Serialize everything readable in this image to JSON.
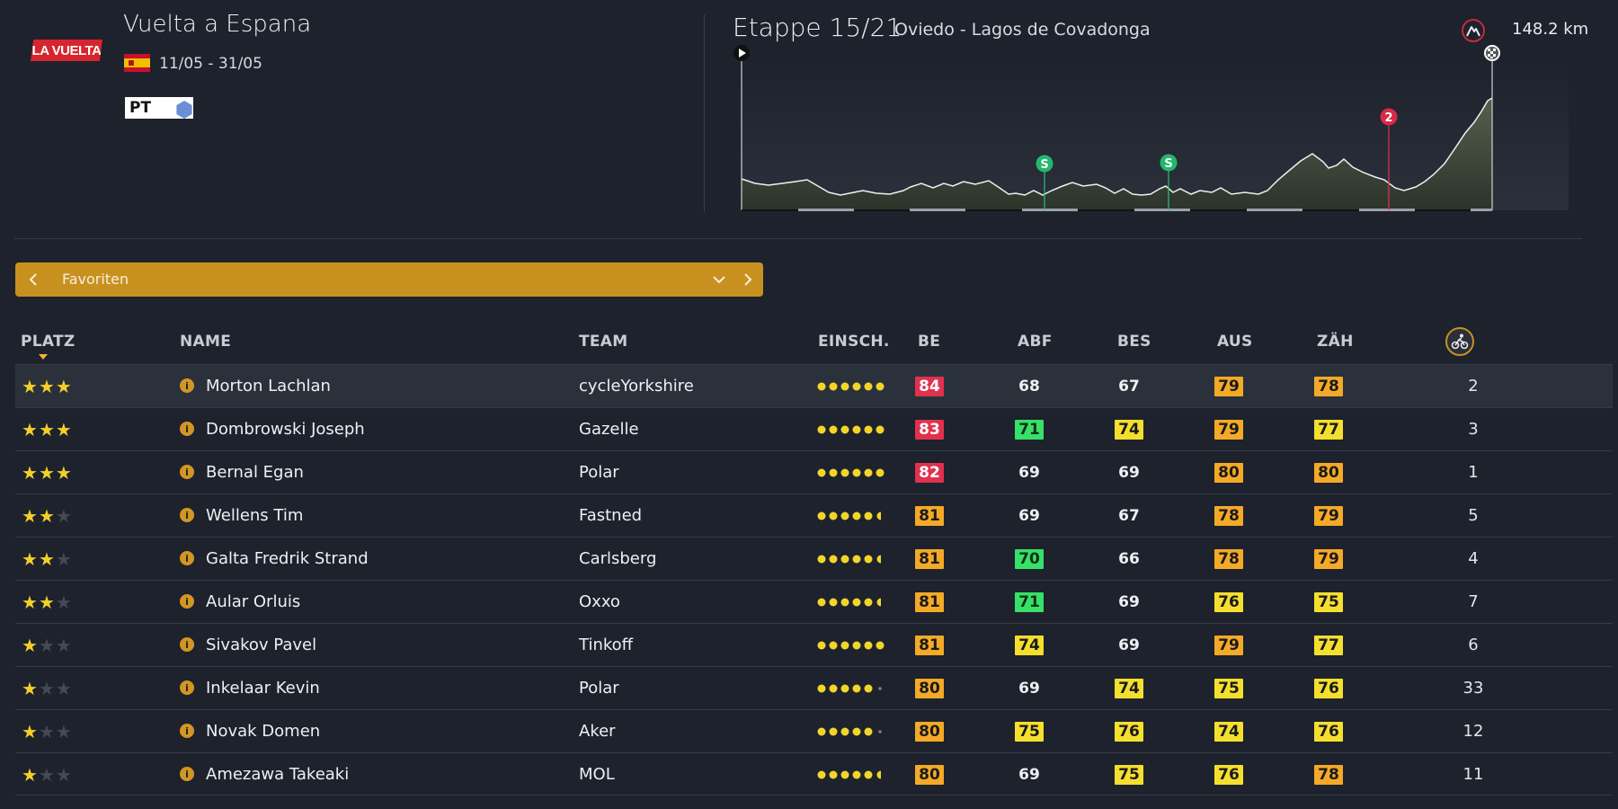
{
  "race": {
    "logo_text": "LA VUELTA",
    "title": "Vuelta a Espana",
    "dates": "11/05 - 31/05",
    "category": "PT",
    "flag": "spain-flag-icon"
  },
  "stage": {
    "label": "Etappe 15/21",
    "route": "Oviedo - Lagos de Covadonga",
    "distance": "148.2 km",
    "type_icon": "mountain-stage-icon",
    "markers": [
      "S",
      "S",
      "2"
    ]
  },
  "filter": {
    "label": "Favoriten",
    "prev_icon": "chevron-left-icon",
    "dropdown_icon": "chevron-down-icon",
    "next_icon": "chevron-right-icon"
  },
  "columns": {
    "platz": "PLATZ",
    "name": "NAME",
    "team": "TEAM",
    "einsch": "EINSCH.",
    "be": "BE",
    "abf": "ABF",
    "bes": "BES",
    "aus": "AUS",
    "zah": "ZÄH",
    "rank_icon": "cyclist-ranking-icon"
  },
  "colors": {
    "background": "#1d222c",
    "accent": "#c8901e",
    "red": "#e0314f",
    "orange": "#f4a927",
    "yellow": "#f5df2e",
    "green": "#37e068",
    "star": "#f3cf2a"
  },
  "riders": [
    {
      "stars": 3,
      "name": "Morton Lachlan",
      "team": "cycleYorkshire",
      "einsch": 6,
      "be": {
        "v": "84",
        "c": "red"
      },
      "abf": {
        "v": "68",
        "c": ""
      },
      "bes": {
        "v": "67",
        "c": ""
      },
      "aus": {
        "v": "79",
        "c": "orange"
      },
      "zah": {
        "v": "78",
        "c": "orange"
      },
      "rank": "2"
    },
    {
      "stars": 3,
      "name": "Dombrowski Joseph",
      "team": "Gazelle",
      "einsch": 6,
      "be": {
        "v": "83",
        "c": "red"
      },
      "abf": {
        "v": "71",
        "c": "green"
      },
      "bes": {
        "v": "74",
        "c": "yellow"
      },
      "aus": {
        "v": "79",
        "c": "orange"
      },
      "zah": {
        "v": "77",
        "c": "yellow"
      },
      "rank": "3"
    },
    {
      "stars": 3,
      "name": "Bernal Egan",
      "team": "Polar",
      "einsch": 6,
      "be": {
        "v": "82",
        "c": "red"
      },
      "abf": {
        "v": "69",
        "c": ""
      },
      "bes": {
        "v": "69",
        "c": ""
      },
      "aus": {
        "v": "80",
        "c": "orange"
      },
      "zah": {
        "v": "80",
        "c": "orange"
      },
      "rank": "1"
    },
    {
      "stars": 2,
      "name": "Wellens Tim",
      "team": "Fastned",
      "einsch": 5.5,
      "be": {
        "v": "81",
        "c": "orange"
      },
      "abf": {
        "v": "69",
        "c": ""
      },
      "bes": {
        "v": "67",
        "c": ""
      },
      "aus": {
        "v": "78",
        "c": "orange"
      },
      "zah": {
        "v": "79",
        "c": "orange"
      },
      "rank": "5"
    },
    {
      "stars": 2,
      "name": "Galta Fredrik Strand",
      "team": "Carlsberg",
      "einsch": 5.5,
      "be": {
        "v": "81",
        "c": "orange"
      },
      "abf": {
        "v": "70",
        "c": "green"
      },
      "bes": {
        "v": "66",
        "c": ""
      },
      "aus": {
        "v": "78",
        "c": "orange"
      },
      "zah": {
        "v": "79",
        "c": "orange"
      },
      "rank": "4"
    },
    {
      "stars": 2,
      "name": "Aular Orluis",
      "team": "Oxxo",
      "einsch": 5.5,
      "be": {
        "v": "81",
        "c": "orange"
      },
      "abf": {
        "v": "71",
        "c": "green"
      },
      "bes": {
        "v": "69",
        "c": ""
      },
      "aus": {
        "v": "76",
        "c": "yellow"
      },
      "zah": {
        "v": "75",
        "c": "yellow"
      },
      "rank": "7"
    },
    {
      "stars": 1,
      "name": "Sivakov Pavel",
      "team": "Tinkoff",
      "einsch": 6,
      "be": {
        "v": "81",
        "c": "orange"
      },
      "abf": {
        "v": "74",
        "c": "yellow"
      },
      "bes": {
        "v": "69",
        "c": ""
      },
      "aus": {
        "v": "79",
        "c": "orange"
      },
      "zah": {
        "v": "77",
        "c": "yellow"
      },
      "rank": "6"
    },
    {
      "stars": 1,
      "name": "Inkelaar Kevin",
      "team": "Polar",
      "einsch": 5,
      "be": {
        "v": "80",
        "c": "orange"
      },
      "abf": {
        "v": "69",
        "c": ""
      },
      "bes": {
        "v": "74",
        "c": "yellow"
      },
      "aus": {
        "v": "75",
        "c": "yellow"
      },
      "zah": {
        "v": "76",
        "c": "yellow"
      },
      "rank": "33"
    },
    {
      "stars": 1,
      "name": "Novak Domen",
      "team": "Aker",
      "einsch": 5,
      "be": {
        "v": "80",
        "c": "orange"
      },
      "abf": {
        "v": "75",
        "c": "yellow"
      },
      "bes": {
        "v": "76",
        "c": "yellow"
      },
      "aus": {
        "v": "74",
        "c": "yellow"
      },
      "zah": {
        "v": "76",
        "c": "yellow"
      },
      "rank": "12"
    },
    {
      "stars": 1,
      "name": "Amezawa Takeaki",
      "team": "MOL",
      "einsch": 5.5,
      "be": {
        "v": "80",
        "c": "orange"
      },
      "abf": {
        "v": "69",
        "c": ""
      },
      "bes": {
        "v": "75",
        "c": "yellow"
      },
      "aus": {
        "v": "76",
        "c": "yellow"
      },
      "zah": {
        "v": "78",
        "c": "orange"
      },
      "rank": "11"
    }
  ]
}
